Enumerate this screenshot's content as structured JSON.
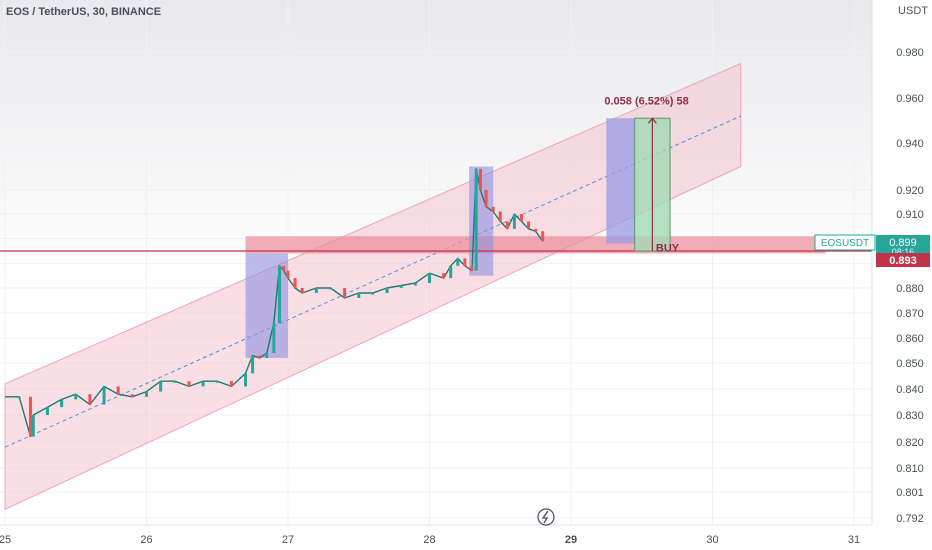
{
  "header": {
    "title": "EOS / TetherUS, 30, BINANCE"
  },
  "chart_data": {
    "type": "line",
    "title": "EOS / TetherUS, 30, BINANCE",
    "price_axis_label": "USDT",
    "price_ticks": [
      0.98,
      0.96,
      0.94,
      0.92,
      0.91,
      0.9,
      0.89,
      0.88,
      0.87,
      0.86,
      0.85,
      0.84,
      0.83,
      0.82,
      0.81,
      0.801,
      0.792
    ],
    "price_tick_labels": [
      "0.980",
      "0.960",
      "0.940",
      "0.920",
      "0.910",
      "",
      "",
      "0.880",
      "0.870",
      "0.860",
      "0.850",
      "0.840",
      "0.830",
      "0.820",
      "0.810",
      "0.801",
      "0.792"
    ],
    "x_ticks": [
      25,
      26,
      27,
      28,
      29,
      30,
      31
    ],
    "x_tick_labels": [
      "25",
      "26",
      "27",
      "28",
      "29",
      "30",
      "31"
    ],
    "x_tick_bold": "29",
    "ylim": [
      0.788,
      1.0
    ],
    "xlim": [
      25.0,
      31.05
    ],
    "price_series": {
      "name": "EOSUSDT",
      "x": [
        25.0,
        25.1,
        25.18,
        25.2,
        25.3,
        25.4,
        25.5,
        25.6,
        25.7,
        25.8,
        25.9,
        26.0,
        26.1,
        26.2,
        26.3,
        26.4,
        26.5,
        26.6,
        26.7,
        26.75,
        26.8,
        26.85,
        26.9,
        26.94,
        26.97,
        27.0,
        27.05,
        27.1,
        27.2,
        27.3,
        27.4,
        27.5,
        27.6,
        27.7,
        27.8,
        27.9,
        28.0,
        28.1,
        28.15,
        28.2,
        28.25,
        28.3,
        28.33,
        28.36,
        28.4,
        28.45,
        28.5,
        28.55,
        28.6,
        28.65,
        28.7,
        28.75,
        28.8
      ],
      "y": [
        0.837,
        0.837,
        0.822,
        0.83,
        0.833,
        0.836,
        0.838,
        0.834,
        0.841,
        0.838,
        0.837,
        0.839,
        0.843,
        0.843,
        0.841,
        0.843,
        0.843,
        0.841,
        0.846,
        0.853,
        0.852,
        0.854,
        0.866,
        0.889,
        0.887,
        0.884,
        0.88,
        0.878,
        0.88,
        0.88,
        0.876,
        0.878,
        0.878,
        0.88,
        0.881,
        0.882,
        0.886,
        0.884,
        0.889,
        0.892,
        0.889,
        0.887,
        0.929,
        0.92,
        0.913,
        0.911,
        0.907,
        0.904,
        0.91,
        0.907,
        0.904,
        0.903,
        0.899
      ]
    },
    "channel": {
      "lower_start": [
        25.0,
        0.795
      ],
      "lower_end": [
        30.2,
        0.93
      ],
      "upper_start": [
        25.0,
        0.842
      ],
      "upper_end": [
        30.2,
        0.975
      ]
    },
    "midline": {
      "start": [
        25.0,
        0.818
      ],
      "end": [
        30.2,
        0.952
      ]
    },
    "horizontal_line": 0.895,
    "buy_zone": {
      "x0": 26.7,
      "x1": 30.8,
      "y_top": 0.901,
      "y_bottom": 0.894,
      "label": "BUY"
    },
    "highlight_boxes": [
      {
        "x0": 26.7,
        "x1": 27.0,
        "y_top": 0.894,
        "y_bottom": 0.852,
        "color": "#8f8fe0"
      },
      {
        "x0": 28.28,
        "x1": 28.45,
        "y_top": 0.93,
        "y_bottom": 0.885,
        "color": "#8f8fe0"
      }
    ],
    "projection": {
      "label": "0.058 (6.52%) 58",
      "blue": {
        "x0": 29.25,
        "x1": 29.45,
        "y_top": 0.951,
        "y_bottom": 0.898
      },
      "green": {
        "x0": 29.45,
        "x1": 29.7,
        "y_top": 0.951,
        "y_bottom": 0.895
      }
    },
    "last_price_labels": [
      {
        "text": "EOSUSDT",
        "color": "#26a69a"
      },
      {
        "text": "0.899",
        "color": "#26a69a"
      },
      {
        "text": "08:16",
        "color": "#26a69a"
      },
      {
        "text": "0.893",
        "color": "#c0334a"
      }
    ],
    "grid": true,
    "colors": {
      "up": "#26a69a",
      "down": "#ef5350",
      "channel": "#f2b8c6",
      "buy_zone": "#ec8c9a",
      "hline": "#c0334a",
      "axis_text": "#4a4f5c"
    }
  }
}
